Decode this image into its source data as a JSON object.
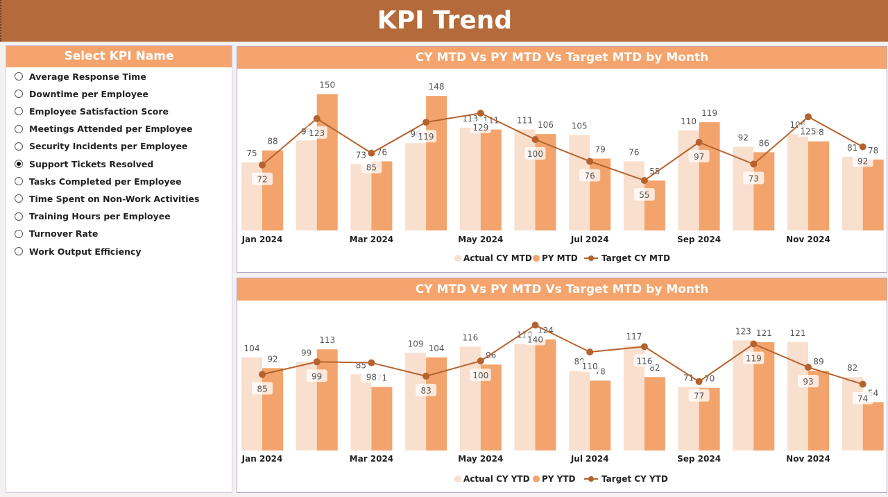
{
  "header": {
    "title": "KPI Trend"
  },
  "slicer": {
    "title": "Select KPI Name",
    "selected": "Support Tickets Resolved",
    "items": [
      "Average Response Time",
      "Downtime per Employee",
      "Employee Satisfaction Score",
      "Meetings Attended per Employee",
      "Security Incidents per Employee",
      "Support Tickets Resolved",
      "Tasks Completed per Employee",
      "Time Spent on Non-Work Activities",
      "Training Hours per Employee",
      "Turnover Rate",
      "Work Output Efficiency"
    ]
  },
  "colors": {
    "actual": "#F9DFCD",
    "py": "#F2A46C",
    "target": "#B5622F",
    "header": "#B46A3A",
    "title_bar": "#F4A46C"
  },
  "chart_data": [
    {
      "type": "bar",
      "title": "CY MTD Vs PY MTD Vs Target MTD by Month",
      "categories": [
        "Jan 2024",
        "Feb 2024",
        "Mar 2024",
        "Apr 2024",
        "May 2024",
        "Jun 2024",
        "Jul 2024",
        "Aug 2024",
        "Sep 2024",
        "Oct 2024",
        "Nov 2024",
        "Dec 2024"
      ],
      "tick_labels": [
        "Jan 2024",
        "",
        "Mar 2024",
        "",
        "May 2024",
        "",
        "Jul 2024",
        "",
        "Sep 2024",
        "",
        "Nov 2024",
        ""
      ],
      "series": [
        {
          "name": "Actual CY MTD",
          "type": "bar",
          "values": [
            75,
            99,
            73,
            96,
            113,
            111,
            105,
            76,
            110,
            92,
            106,
            81
          ]
        },
        {
          "name": "PY MTD",
          "type": "bar",
          "values": [
            88,
            150,
            76,
            148,
            111,
            106,
            79,
            55,
            119,
            86,
            98,
            78
          ]
        },
        {
          "name": "Target CY MTD",
          "type": "line",
          "values": [
            72,
            123,
            85,
            119,
            129,
            100,
            76,
            55,
            97,
            73,
            125,
            92
          ]
        }
      ],
      "legend": "bottom"
    },
    {
      "type": "bar",
      "title": "CY MTD Vs PY MTD Vs Target MTD by Month",
      "categories": [
        "Jan 2024",
        "Feb 2024",
        "Mar 2024",
        "Apr 2024",
        "May 2024",
        "Jun 2024",
        "Jul 2024",
        "Aug 2024",
        "Sep 2024",
        "Oct 2024",
        "Nov 2024",
        "Dec 2024"
      ],
      "tick_labels": [
        "Jan 2024",
        "",
        "Mar 2024",
        "",
        "May 2024",
        "",
        "Jul 2024",
        "",
        "Sep 2024",
        "",
        "Nov 2024",
        ""
      ],
      "series": [
        {
          "name": "Actual CY YTD",
          "type": "bar",
          "values": [
            104,
            99,
            85,
            109,
            116,
            119,
            89,
            117,
            71,
            123,
            121,
            82
          ]
        },
        {
          "name": "PY YTD",
          "type": "bar",
          "values": [
            92,
            113,
            71,
            104,
            96,
            124,
            78,
            82,
            70,
            121,
            89,
            54
          ]
        },
        {
          "name": "Target CY YTD",
          "type": "line",
          "values": [
            85,
            99,
            98,
            83,
            100,
            140,
            110,
            116,
            77,
            119,
            93,
            74
          ]
        }
      ],
      "legend": "bottom"
    }
  ]
}
